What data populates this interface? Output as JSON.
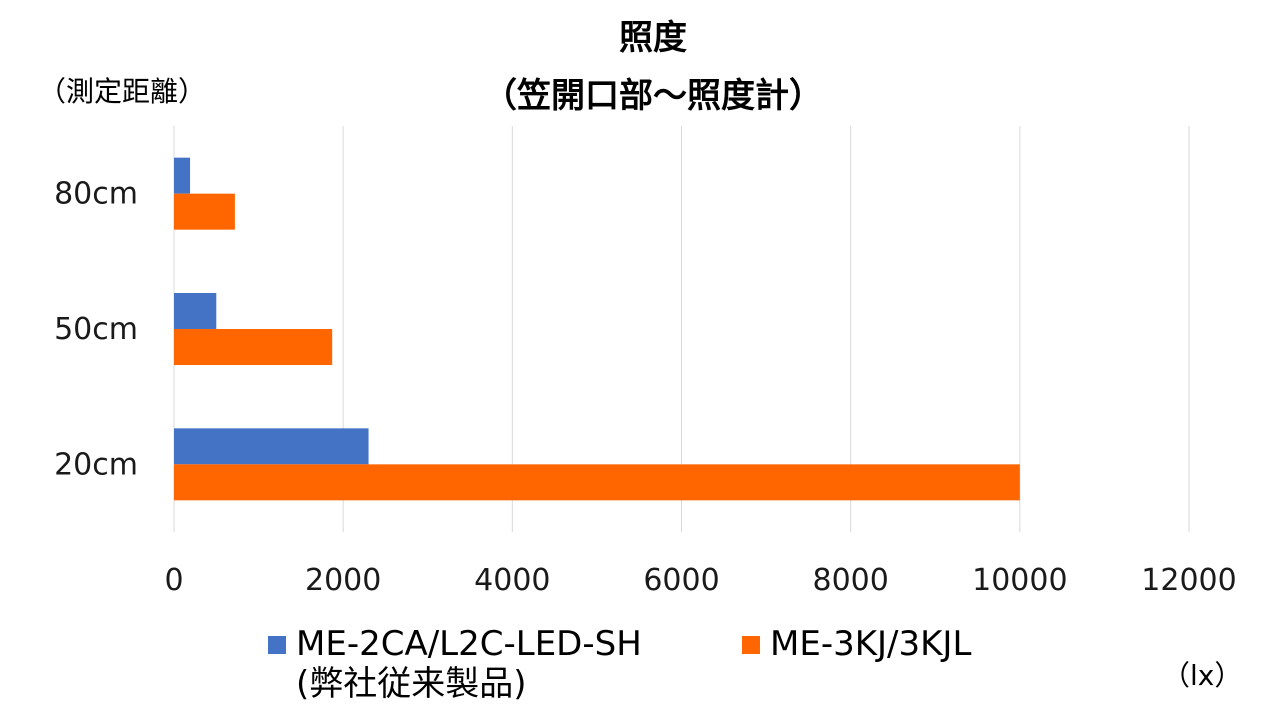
{
  "chart_data": {
    "type": "bar",
    "orientation": "horizontal",
    "title": [
      "照度",
      "（笠開口部～照度計）"
    ],
    "ylabel": "（測定距離）",
    "xlabel": "（lx）",
    "categories": [
      "80cm",
      "50cm",
      "20cm"
    ],
    "series": [
      {
        "name": "ME-2CA/L2C-LED-SH\n(弊社従来製品)",
        "color": "#4472C4",
        "values": [
          190,
          500,
          2300
        ]
      },
      {
        "name": "ME-3KJ/3KJL",
        "color": "#FF6600",
        "values": [
          720,
          1870,
          10000
        ]
      }
    ],
    "xlim": [
      0,
      12000
    ],
    "xticks": [
      "0",
      "2000",
      "4000",
      "6000",
      "8000",
      "10000",
      "12000"
    ],
    "grid": true,
    "legend_position": "bottom"
  }
}
